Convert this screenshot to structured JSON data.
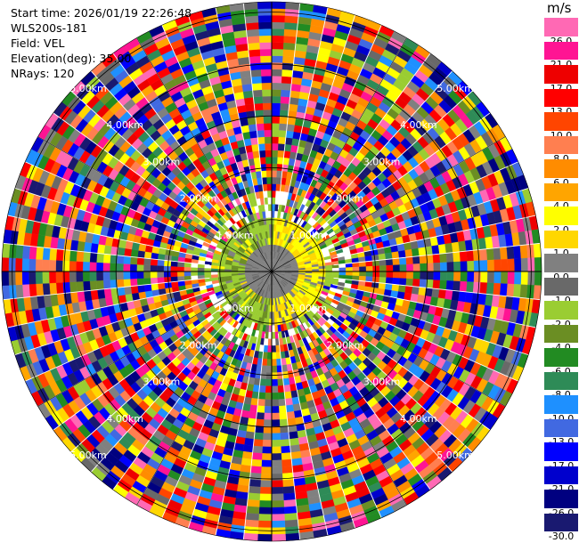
{
  "header": {
    "start_time": "Start time: 2026/01/19 22:26:48",
    "instrument": "WLS200s-181",
    "field": "Field: VEL",
    "elevation": "Elevation(deg): 35.00",
    "nrays": "NRays: 120"
  },
  "chart_data": {
    "type": "heatmap",
    "subtype": "polar-ppi",
    "field": "VEL",
    "n_rays": 120,
    "max_range_km": 5.2,
    "range_ring_labels": [
      "1.00km",
      "2.00km",
      "3.00km",
      "4.00km",
      "5.00km"
    ],
    "colorbar": {
      "unit": "m/s",
      "ticks": [
        "-30.0",
        "-26.0",
        "-21.0",
        "-17.0",
        "-13.0",
        "-10.0",
        "-8.0",
        "-6.0",
        "-4.0",
        "-2.0",
        "-1.0",
        "0.0",
        "1.0",
        "2.0",
        "4.0",
        "6.0",
        "8.0",
        "10.0",
        "13.0",
        "17.0",
        "21.0",
        "26.0"
      ],
      "colors": [
        "#191970",
        "#000080",
        "#0000cd",
        "#0000ff",
        "#4169e1",
        "#1e90ff",
        "#2e8b57",
        "#228b22",
        "#6b8e23",
        "#9acd32",
        "#696969",
        "#808080",
        "#ffd700",
        "#ffff00",
        "#ffa500",
        "#ff8c00",
        "#ff7f50",
        "#ff4500",
        "#ff0000",
        "#ee0000",
        "#ff1493",
        "#ff69b4"
      ]
    },
    "pattern": "Inner ~1 km dominated by near-zero gray and weak green (negative) / yellow (positive) velocities; beyond ~1 km the field is noisy with random colors across all bins."
  }
}
